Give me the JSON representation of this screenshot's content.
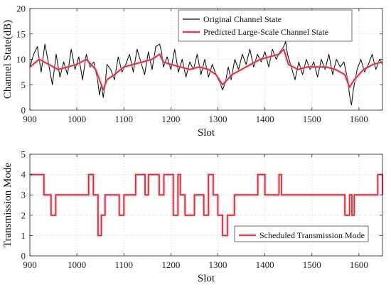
{
  "chart_data": [
    {
      "type": "line",
      "xlabel": "Slot",
      "ylabel": "Channel State(dB)",
      "xlim": [
        900,
        1650
      ],
      "ylim": [
        0,
        20
      ],
      "xticks": [
        900,
        1000,
        1100,
        1200,
        1300,
        1400,
        1500,
        1600
      ],
      "yticks": [
        0,
        5,
        10,
        15,
        20
      ],
      "grid": true,
      "legend_position": "top-right",
      "series": [
        {
          "name": "Original Channel State",
          "color": "#000000",
          "x": [
            900,
            908,
            916,
            924,
            932,
            940,
            948,
            956,
            964,
            972,
            980,
            988,
            996,
            1004,
            1012,
            1020,
            1028,
            1036,
            1044,
            1048,
            1052,
            1056,
            1060,
            1064,
            1072,
            1080,
            1088,
            1096,
            1104,
            1112,
            1120,
            1128,
            1136,
            1144,
            1152,
            1160,
            1168,
            1176,
            1180,
            1184,
            1192,
            1200,
            1208,
            1216,
            1224,
            1232,
            1240,
            1248,
            1256,
            1264,
            1272,
            1280,
            1288,
            1296,
            1304,
            1310,
            1316,
            1322,
            1328,
            1336,
            1344,
            1352,
            1360,
            1368,
            1376,
            1384,
            1392,
            1400,
            1408,
            1416,
            1424,
            1432,
            1440,
            1444,
            1448,
            1456,
            1464,
            1472,
            1480,
            1488,
            1496,
            1504,
            1512,
            1520,
            1528,
            1536,
            1544,
            1552,
            1560,
            1568,
            1576,
            1580,
            1584,
            1588,
            1596,
            1604,
            1612,
            1620,
            1628,
            1636,
            1644,
            1650
          ],
          "y": [
            8.5,
            11,
            12.5,
            7.5,
            13,
            9,
            5,
            11,
            6.5,
            9.5,
            7,
            12,
            8,
            10.5,
            6,
            11,
            8.5,
            9.5,
            6,
            3,
            5,
            2.5,
            5,
            9,
            8,
            6,
            10.5,
            7.5,
            9,
            11,
            7.5,
            12,
            9.5,
            7,
            11.5,
            8,
            12.5,
            13,
            11.5,
            8.5,
            10.5,
            8,
            12,
            7.5,
            10,
            6.5,
            9.5,
            8,
            11,
            7,
            10,
            6.5,
            9,
            7,
            5.5,
            4,
            5.5,
            8.5,
            6,
            10,
            8,
            11,
            9,
            12,
            8.5,
            11,
            9.5,
            11.5,
            8.5,
            12,
            10,
            11.5,
            12.5,
            13.5,
            11,
            8.5,
            6,
            9.5,
            7,
            10,
            8,
            9.5,
            6.5,
            10,
            8,
            11,
            7,
            10,
            8.5,
            9.5,
            6,
            3,
            1,
            4,
            8,
            10,
            7.5,
            9,
            11,
            8,
            10,
            9
          ]
        },
        {
          "name": "Predicted Large-Scale Channel State",
          "color": "#c0392b",
          "x": [
            900,
            920,
            940,
            960,
            980,
            1000,
            1020,
            1040,
            1048,
            1056,
            1064,
            1080,
            1100,
            1120,
            1140,
            1160,
            1176,
            1184,
            1200,
            1220,
            1240,
            1260,
            1280,
            1296,
            1310,
            1320,
            1330,
            1350,
            1370,
            1390,
            1410,
            1430,
            1440,
            1450,
            1470,
            1490,
            1510,
            1530,
            1550,
            1570,
            1580,
            1590,
            1610,
            1630,
            1650
          ],
          "y": [
            8.5,
            10,
            9,
            8,
            8.5,
            9,
            10,
            8,
            6,
            4,
            6,
            7,
            8.5,
            9,
            9.5,
            10,
            11,
            9.5,
            9,
            8.5,
            8,
            8.5,
            8,
            7,
            5,
            6,
            7,
            8,
            9,
            10,
            10.5,
            11,
            12,
            9,
            8,
            8.5,
            8.5,
            8.5,
            8,
            7,
            4.5,
            6,
            8,
            9,
            9.5
          ]
        }
      ]
    },
    {
      "type": "line",
      "xlabel": "Slot",
      "ylabel": "Transmission Mode",
      "xlim": [
        900,
        1650
      ],
      "ylim": [
        0,
        5
      ],
      "xticks": [
        900,
        1000,
        1100,
        1200,
        1300,
        1400,
        1500,
        1600
      ],
      "yticks": [
        0,
        1,
        2,
        3,
        4,
        5
      ],
      "grid": true,
      "legend_position": "bottom-right",
      "series": [
        {
          "name": "Scheduled Transmission Mode",
          "color": "#c0392b",
          "step": true,
          "x": [
            900,
            930,
            945,
            955,
            1025,
            1035,
            1045,
            1052,
            1060,
            1090,
            1100,
            1125,
            1145,
            1152,
            1175,
            1185,
            1205,
            1215,
            1220,
            1230,
            1250,
            1270,
            1280,
            1290,
            1300,
            1310,
            1320,
            1335,
            1385,
            1400,
            1430,
            1435,
            1570,
            1580,
            1585,
            1590,
            1640,
            1650
          ],
          "y": [
            4,
            3,
            2,
            3,
            4,
            3,
            1,
            2,
            3,
            2,
            3,
            4,
            3,
            4,
            3,
            4,
            2,
            4,
            3,
            2,
            3,
            2,
            4,
            3,
            2,
            1,
            2,
            3,
            4,
            3,
            4,
            3,
            2,
            3,
            2,
            3,
            4,
            3
          ]
        }
      ]
    }
  ]
}
